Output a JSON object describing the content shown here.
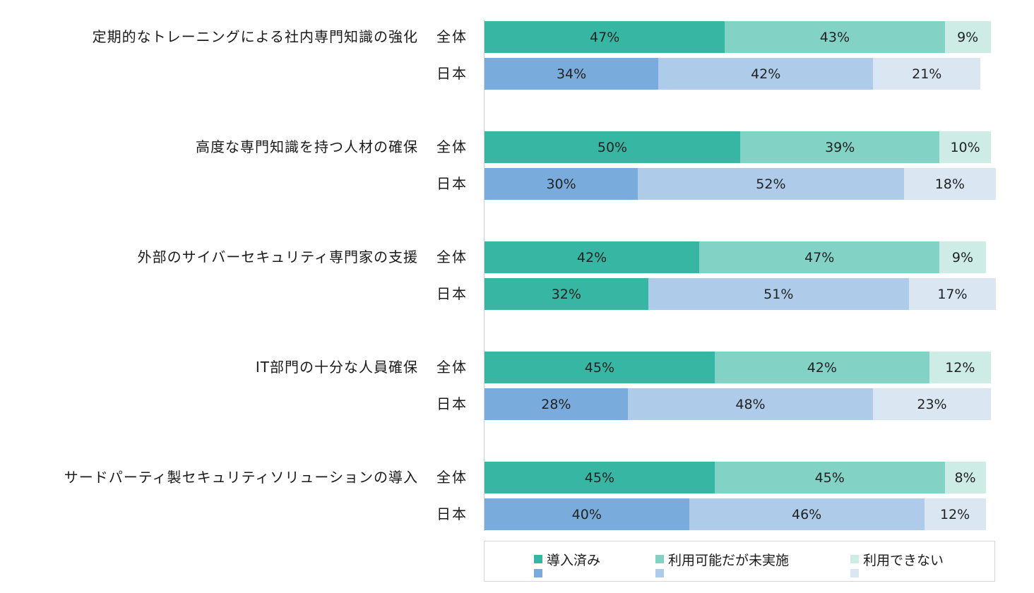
{
  "chart_data": {
    "type": "bar",
    "orientation": "horizontal-stacked",
    "legend": [
      {
        "name": "導入済み",
        "colors": [
          "#37b7a3",
          "#79acdc"
        ]
      },
      {
        "name": "利用可能だが未実施",
        "colors": [
          "#82d3c6",
          "#aecce9"
        ]
      },
      {
        "name": "利用できない",
        "colors": [
          "#cdece6",
          "#dae7f3"
        ]
      }
    ],
    "scale_max": 100,
    "groups": [
      {
        "category": "定期的なトレーニングによる社内専門知識の強化",
        "rows": [
          {
            "label": "全体",
            "values": [
              47,
              43,
              9
            ],
            "labels": [
              "47%",
              "43%",
              "9%"
            ],
            "colors": [
              "#37b7a3",
              "#82d3c6",
              "#cdece6"
            ]
          },
          {
            "label": "日本",
            "values": [
              34,
              42,
              21
            ],
            "labels": [
              "34%",
              "42%",
              "21%"
            ],
            "colors": [
              "#79acdc",
              "#aecce9",
              "#dae7f3"
            ]
          }
        ]
      },
      {
        "category": "高度な専門知識を持つ人材の確保",
        "rows": [
          {
            "label": "全体",
            "values": [
              50,
              39,
              10
            ],
            "labels": [
              "50%",
              "39%",
              "10%"
            ],
            "colors": [
              "#37b7a3",
              "#82d3c6",
              "#cdece6"
            ]
          },
          {
            "label": "日本",
            "values": [
              30,
              52,
              18
            ],
            "labels": [
              "30%",
              "52%",
              "18%"
            ],
            "colors": [
              "#79acdc",
              "#aecce9",
              "#dae7f3"
            ]
          }
        ]
      },
      {
        "category": "外部のサイバーセキュリティ専門家の支援",
        "rows": [
          {
            "label": "全体",
            "values": [
              42,
              47,
              9
            ],
            "labels": [
              "42%",
              "47%",
              "9%"
            ],
            "colors": [
              "#37b7a3",
              "#82d3c6",
              "#cdece6"
            ]
          },
          {
            "label": "日本",
            "values": [
              32,
              51,
              17
            ],
            "labels": [
              "32%",
              "51%",
              "17%"
            ],
            "colors": [
              "#37b7a3",
              "#aecce9",
              "#dae7f3"
            ]
          }
        ]
      },
      {
        "category": "IT部門の十分な人員確保",
        "rows": [
          {
            "label": "全体",
            "values": [
              45,
              42,
              12
            ],
            "labels": [
              "45%",
              "42%",
              "12%"
            ],
            "colors": [
              "#37b7a3",
              "#82d3c6",
              "#cdece6"
            ]
          },
          {
            "label": "日本",
            "values": [
              28,
              48,
              23
            ],
            "labels": [
              "28%",
              "48%",
              "23%"
            ],
            "colors": [
              "#79acdc",
              "#aecce9",
              "#dae7f3"
            ]
          }
        ]
      },
      {
        "category": "サードパーティ製セキュリティソリューションの導入",
        "rows": [
          {
            "label": "全体",
            "values": [
              45,
              45,
              8
            ],
            "labels": [
              "45%",
              "45%",
              "8%"
            ],
            "colors": [
              "#37b7a3",
              "#82d3c6",
              "#cdece6"
            ]
          },
          {
            "label": "日本",
            "values": [
              40,
              46,
              12
            ],
            "labels": [
              "40%",
              "46%",
              "12%"
            ],
            "colors": [
              "#79acdc",
              "#aecce9",
              "#dae7f3"
            ]
          }
        ]
      }
    ]
  }
}
